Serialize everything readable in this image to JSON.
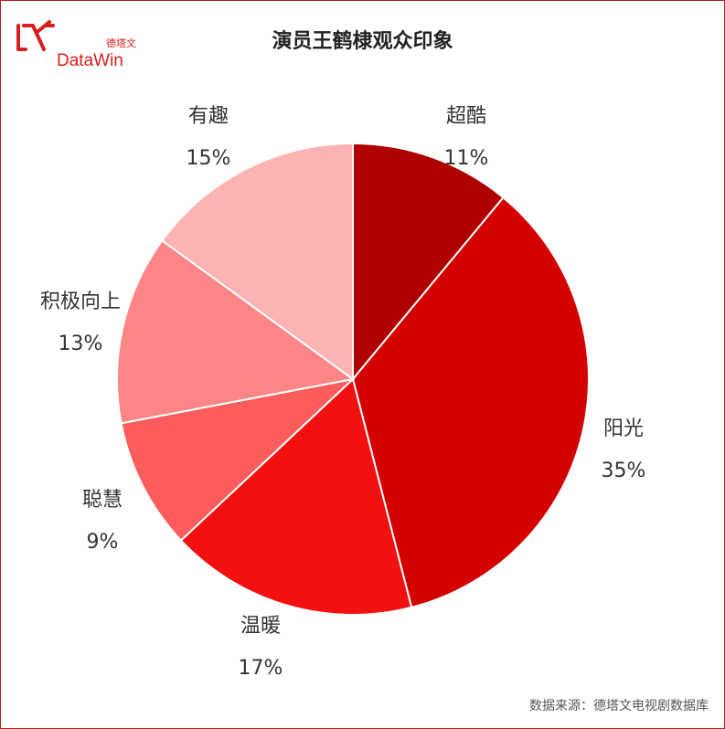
{
  "logo": {
    "cn": "德塔文",
    "en": "DataWin"
  },
  "chart_data": {
    "type": "pie",
    "title": "演员王鹤棣观众印象",
    "slices": [
      {
        "label": "超酷",
        "value": 11,
        "value_label": "11%",
        "color": "#b00000"
      },
      {
        "label": "阳光",
        "value": 35,
        "value_label": "35%",
        "color": "#d40000"
      },
      {
        "label": "温暖",
        "value": 17,
        "value_label": "17%",
        "color": "#f21010"
      },
      {
        "label": "聪慧",
        "value": 9,
        "value_label": "9%",
        "color": "#fc5c5c"
      },
      {
        "label": "积极向上",
        "value": 13,
        "value_label": "13%",
        "color": "#fc8686"
      },
      {
        "label": "有趣",
        "value": 15,
        "value_label": "15%",
        "color": "#fdb3b3"
      }
    ]
  },
  "source": "数据来源：德塔文电视剧数据库"
}
